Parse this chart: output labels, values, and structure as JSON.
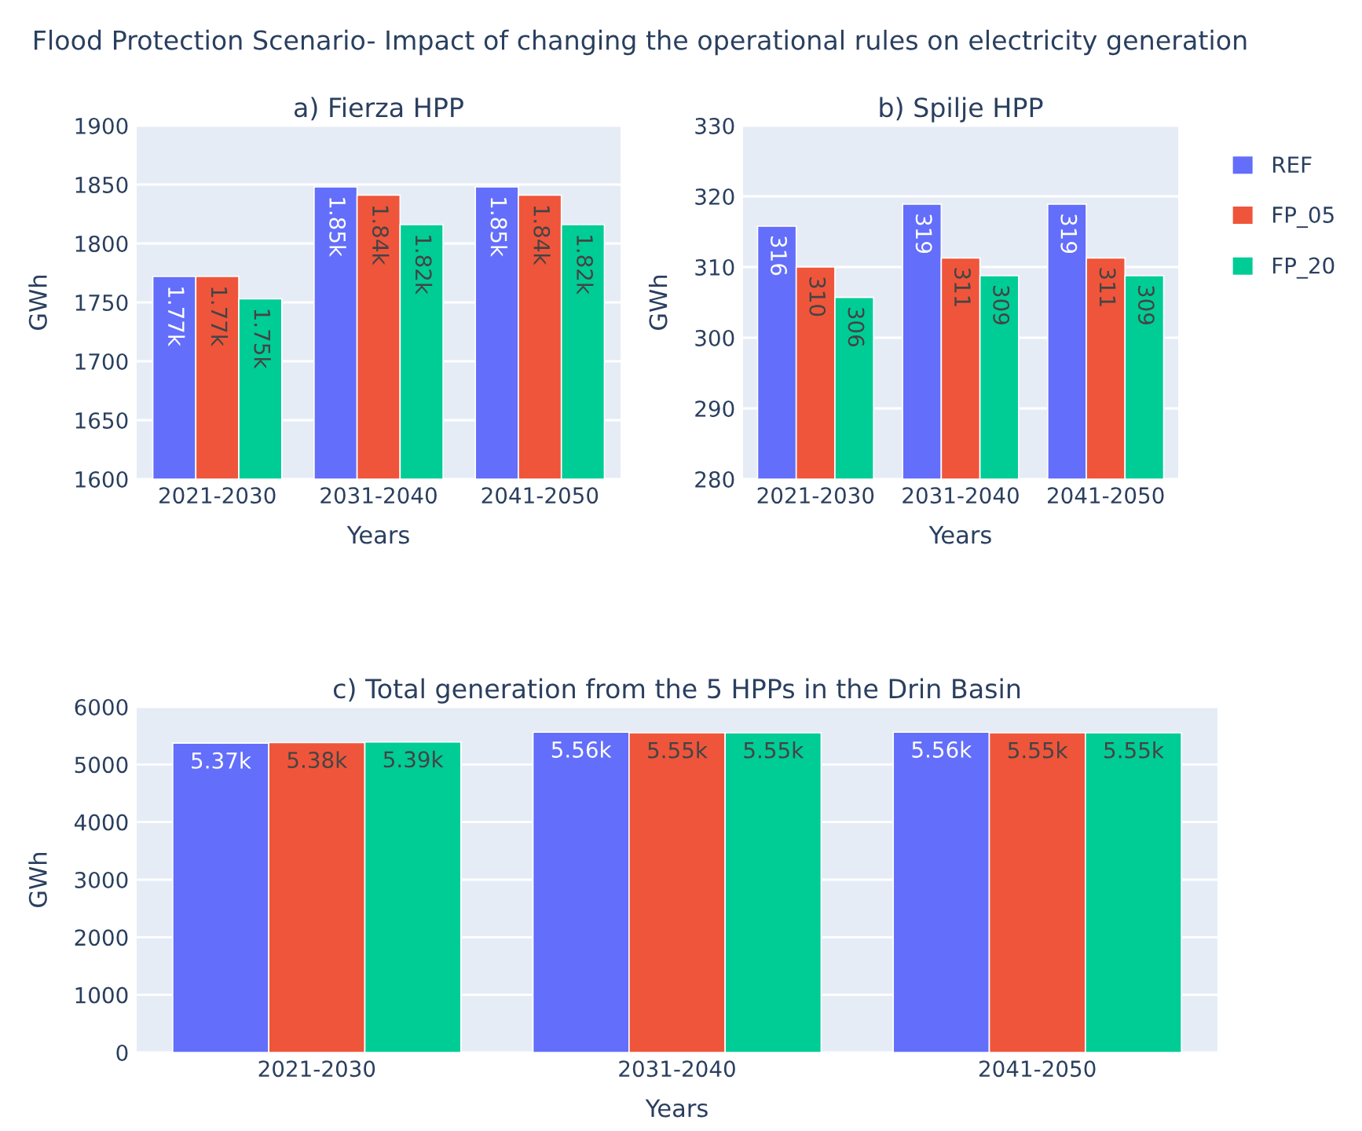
{
  "chart_data": [
    {
      "type": "bar",
      "title": "a) Fierza HPP",
      "xlabel": "Years",
      "ylabel": "GWh",
      "categories": [
        "2021-2030",
        "2031-2040",
        "2041-2050"
      ],
      "annotations": [
        "Flood Protection Scenario- Impact of changing the operational rules on electricity generation"
      ],
      "series": [
        {
          "color": "#636efa",
          "values": [
            1772,
            1848,
            1848
          ],
          "value_labels": [
            "1.77k",
            "1.85k",
            "1.85k"
          ]
        },
        {
          "color": "#ef553b",
          "values": [
            1772,
            1841,
            1841
          ],
          "value_labels": [
            "1.77k",
            "1.84k",
            "1.84k"
          ]
        },
        {
          "color": "#00cc96",
          "values": [
            1753,
            1816,
            1816
          ],
          "value_labels": [
            "1.75k",
            "1.82k",
            "1.82k"
          ]
        }
      ],
      "ylim": [
        1600,
        1900
      ],
      "yticks": [
        1600,
        1650,
        1700,
        1750,
        1800,
        1850,
        1900
      ],
      "grid": "y"
    },
    {
      "type": "bar",
      "title": "b) Spilje HPP",
      "xlabel": "Years",
      "ylabel": "GWh",
      "categories": [
        "2021-2030",
        "2031-2040",
        "2041-2050"
      ],
      "series": [
        {
          "name": "REF",
          "color": "#636efa",
          "values": [
            315.8,
            318.9,
            318.9
          ],
          "value_labels": [
            "316",
            "319",
            "319"
          ]
        },
        {
          "name": "FP_05",
          "color": "#ef553b",
          "values": [
            310.0,
            311.3,
            311.3
          ],
          "value_labels": [
            "310",
            "311",
            "311"
          ]
        },
        {
          "name": "FP_20",
          "color": "#00cc96",
          "values": [
            305.7,
            308.8,
            308.8
          ],
          "value_labels": [
            "306",
            "309",
            "309"
          ]
        }
      ],
      "ylim": [
        280,
        330
      ],
      "yticks": [
        280,
        290,
        300,
        310,
        320,
        330
      ],
      "grid": "y",
      "legend": "right"
    },
    {
      "type": "bar",
      "title": "c) Total generation from the 5 HPPs in the Drin Basin",
      "xlabel": "Years",
      "ylabel": "GWh",
      "categories": [
        "2021-2030",
        "2031-2040",
        "2041-2050"
      ],
      "series": [
        {
          "color": "#636efa",
          "values": [
            5370,
            5560,
            5560
          ],
          "value_labels": [
            "5.37k",
            "5.56k",
            "5.56k"
          ]
        },
        {
          "color": "#ef553b",
          "values": [
            5380,
            5550,
            5550
          ],
          "value_labels": [
            "5.38k",
            "5.55k",
            "5.55k"
          ]
        },
        {
          "color": "#00cc96",
          "values": [
            5390,
            5550,
            5550
          ],
          "value_labels": [
            "5.39k",
            "5.55k",
            "5.55k"
          ]
        }
      ],
      "ylim": [
        0,
        6000
      ],
      "yticks": [
        0,
        1000,
        2000,
        3000,
        4000,
        5000,
        6000
      ],
      "grid": "y"
    }
  ]
}
